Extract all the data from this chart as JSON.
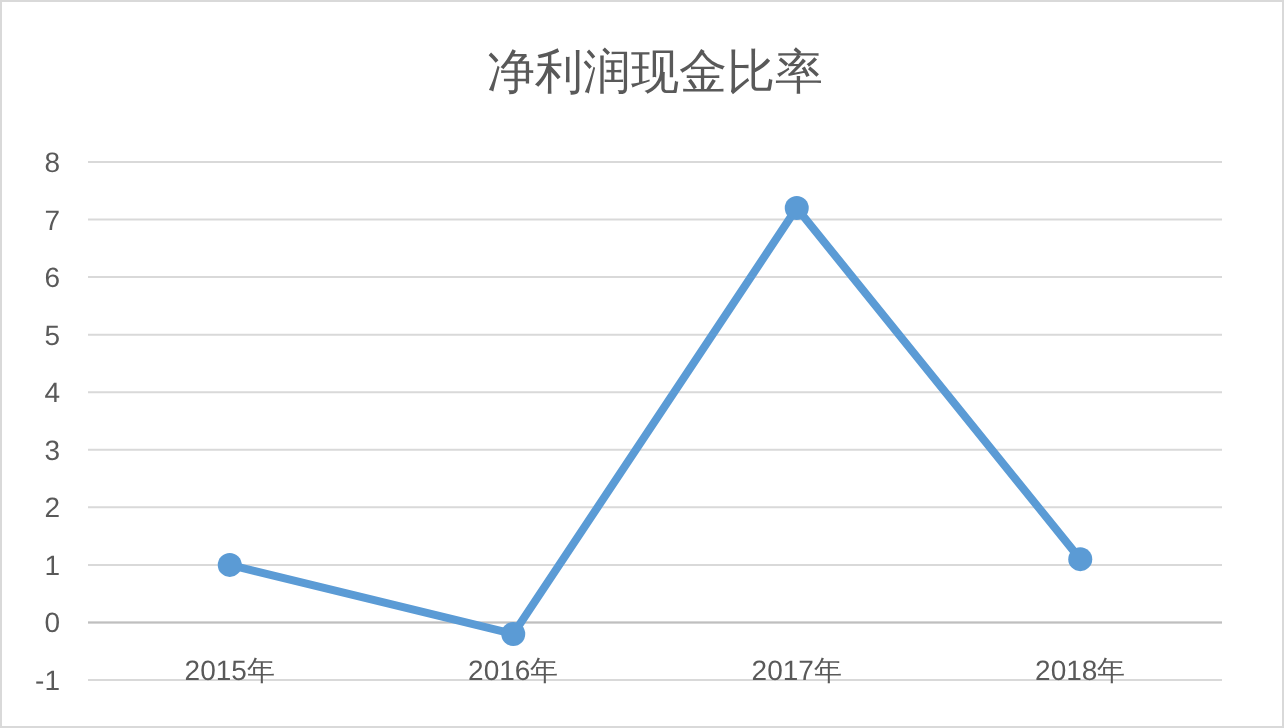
{
  "chart_data": {
    "type": "line",
    "title": "净利润现金比率",
    "categories": [
      "2015年",
      "2016年",
      "2017年",
      "2018年"
    ],
    "series": [
      {
        "color": "#5b9bd5",
        "values": [
          1.0,
          -0.2,
          7.2,
          1.1
        ]
      }
    ],
    "ylim": [
      -1,
      8
    ],
    "yticks": [
      -1,
      0,
      1,
      2,
      3,
      4,
      5,
      6,
      7,
      8
    ],
    "grid": "y",
    "marker": "circle"
  }
}
